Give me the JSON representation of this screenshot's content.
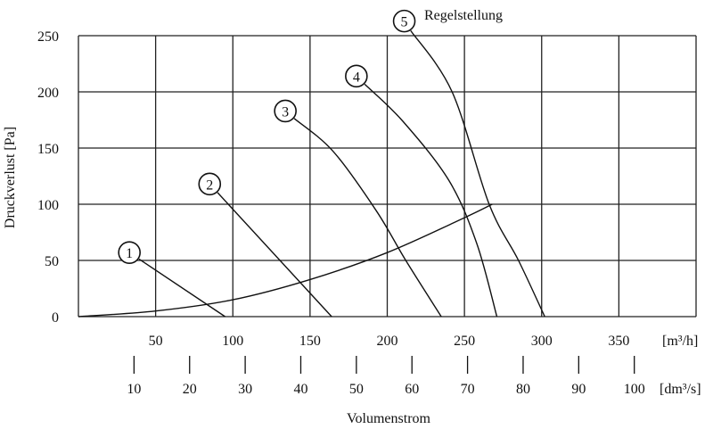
{
  "chart_data": {
    "type": "line",
    "title": "",
    "xlabel": "Volumenstrom",
    "ylabel": "Druckverlust [Pa]",
    "xlim": [
      0,
      400
    ],
    "ylim": [
      0,
      250
    ],
    "grid": true,
    "x_unit_primary": "[m³/h]",
    "x_unit_secondary": "[dm³/s]",
    "x_ticks_primary": [
      50,
      100,
      150,
      200,
      250,
      300,
      350
    ],
    "x_ticks_secondary": [
      10,
      20,
      30,
      40,
      50,
      60,
      70,
      80,
      90,
      100
    ],
    "y_ticks": [
      0,
      50,
      100,
      150,
      200,
      250
    ],
    "legend_title": "Regelstellung",
    "system_curve": {
      "x": [
        0,
        50,
        100,
        150,
        200,
        250,
        268
      ],
      "y": [
        0,
        5,
        15,
        33,
        57,
        88,
        100
      ]
    },
    "series": [
      {
        "name": "1",
        "x": [
          33,
          95
        ],
        "y": [
          57,
          0
        ]
      },
      {
        "name": "2",
        "x": [
          85,
          164
        ],
        "y": [
          118,
          0
        ]
      },
      {
        "name": "3",
        "x": [
          134,
          165,
          193,
          212,
          235
        ],
        "y": [
          183,
          147,
          94,
          50,
          0
        ]
      },
      {
        "name": "4",
        "x": [
          180,
          210,
          240,
          258,
          271
        ],
        "y": [
          214,
          174,
          121,
          65,
          0
        ]
      },
      {
        "name": "5",
        "x": [
          211,
          242,
          266,
          285,
          302
        ],
        "y": [
          263,
          200,
          100,
          50,
          0
        ]
      }
    ]
  }
}
